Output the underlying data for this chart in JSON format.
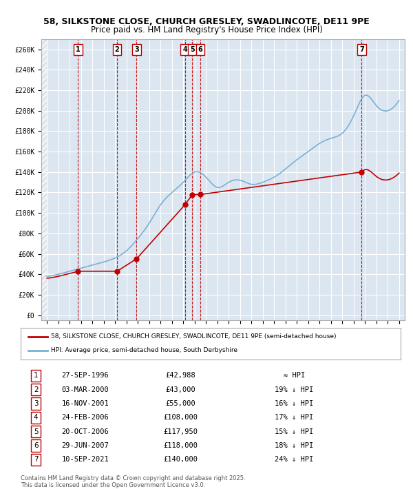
{
  "title_line1": "58, SILKSTONE CLOSE, CHURCH GRESLEY, SWADLINCOTE, DE11 9PE",
  "title_line2": "Price paid vs. HM Land Registry's House Price Index (HPI)",
  "ylabel": "",
  "bg_color": "#ffffff",
  "plot_bg_color": "#dce6f1",
  "grid_color": "#ffffff",
  "hpi_line_color": "#7ab0d4",
  "price_line_color": "#c00000",
  "sale_marker_color": "#c00000",
  "transactions": [
    {
      "num": 1,
      "date": "27-SEP-1996",
      "price": 42988,
      "year": 1996.74,
      "note": "≈ HPI"
    },
    {
      "num": 2,
      "date": "03-MAR-2000",
      "price": 43000,
      "year": 2000.17,
      "note": "19% ↓ HPI"
    },
    {
      "num": 3,
      "date": "16-NOV-2001",
      "price": 55000,
      "year": 2001.88,
      "note": "16% ↓ HPI"
    },
    {
      "num": 4,
      "date": "24-FEB-2006",
      "price": 108000,
      "year": 2006.15,
      "note": "17% ↓ HPI"
    },
    {
      "num": 5,
      "date": "20-OCT-2006",
      "price": 117950,
      "year": 2006.8,
      "note": "15% ↓ HPI"
    },
    {
      "num": 6,
      "date": "29-JUN-2007",
      "price": 118000,
      "year": 2007.49,
      "note": "18% ↓ HPI"
    },
    {
      "num": 7,
      "date": "10-SEP-2021",
      "price": 140000,
      "year": 2021.7,
      "note": "24% ↓ HPI"
    }
  ],
  "legend_label_price": "58, SILKSTONE CLOSE, CHURCH GRESLEY, SWADLINCOTE, DE11 9PE (semi-detached house)",
  "legend_label_hpi": "HPI: Average price, semi-detached house, South Derbyshire",
  "footer_line1": "Contains HM Land Registry data © Crown copyright and database right 2025.",
  "footer_line2": "This data is licensed under the Open Government Licence v3.0.",
  "yticks": [
    0,
    20000,
    40000,
    60000,
    80000,
    100000,
    120000,
    140000,
    160000,
    180000,
    200000,
    220000,
    240000,
    260000
  ],
  "ytick_labels": [
    "£0",
    "£20K",
    "£40K",
    "£60K",
    "£80K",
    "£100K",
    "£120K",
    "£140K",
    "£160K",
    "£180K",
    "£200K",
    "£220K",
    "£240K",
    "£260K"
  ],
  "xlim": [
    1993.5,
    2025.5
  ],
  "ylim": [
    -5000,
    270000
  ],
  "xticks": [
    1994,
    1995,
    1996,
    1997,
    1998,
    1999,
    2000,
    2001,
    2002,
    2003,
    2004,
    2005,
    2006,
    2007,
    2008,
    2009,
    2010,
    2011,
    2012,
    2013,
    2014,
    2015,
    2016,
    2017,
    2018,
    2019,
    2020,
    2021,
    2022,
    2023,
    2024,
    2025
  ]
}
